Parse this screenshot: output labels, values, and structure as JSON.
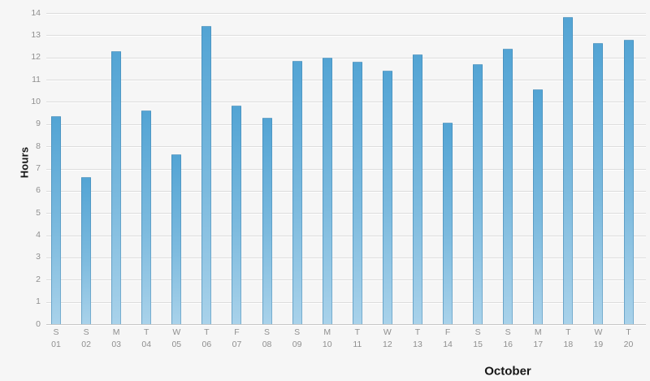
{
  "chart_data": {
    "type": "bar",
    "title": "",
    "ylabel": "Hours",
    "xlabel": "October",
    "categories": [
      "01",
      "02",
      "03",
      "04",
      "05",
      "06",
      "07",
      "08",
      "09",
      "10",
      "11",
      "12",
      "13",
      "14",
      "15",
      "16",
      "17",
      "18",
      "19",
      "20"
    ],
    "day_letters": [
      "S",
      "S",
      "M",
      "T",
      "W",
      "T",
      "F",
      "S",
      "S",
      "M",
      "T",
      "W",
      "T",
      "F",
      "S",
      "S",
      "M",
      "T",
      "W",
      "T"
    ],
    "values": [
      9.35,
      6.6,
      12.3,
      9.6,
      7.65,
      13.4,
      9.85,
      9.3,
      11.85,
      12.0,
      11.8,
      11.4,
      12.15,
      9.05,
      11.7,
      12.4,
      10.55,
      13.8,
      12.65,
      12.8
    ],
    "ylim": [
      0,
      14
    ],
    "yticks": [
      0,
      1,
      2,
      3,
      4,
      5,
      6,
      7,
      8,
      9,
      10,
      11,
      12,
      13,
      14
    ],
    "grid": "horizontal",
    "legend": "none",
    "colors": {
      "background": "#f6f6f6",
      "gridline": "#dcdcdc",
      "axis_line": "#c6c6c6",
      "tick_text": "#8f8f8f",
      "bar_top": "#53a4d4",
      "bar_bottom": "#a9d2ea",
      "bar_edge": "#3e84b0",
      "title_text": "#161616"
    }
  }
}
